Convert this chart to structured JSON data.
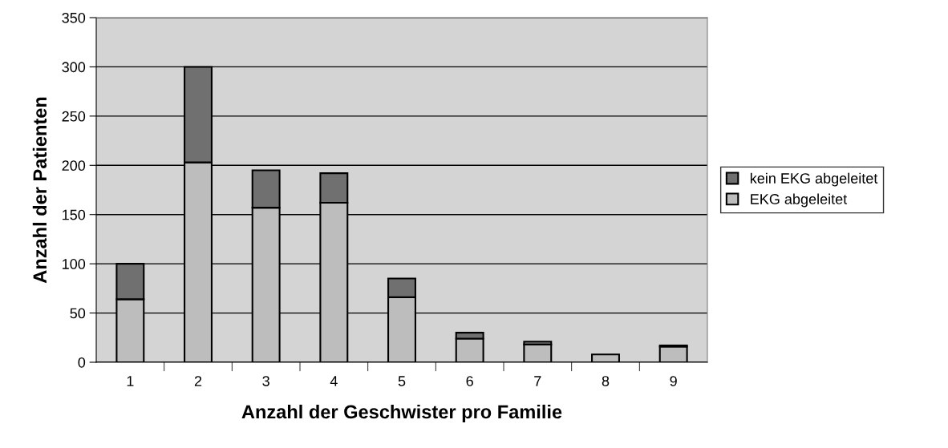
{
  "chart_data": {
    "type": "bar",
    "stacked": true,
    "xlabel": "Anzahl der Geschwister pro Familie",
    "ylabel": "Anzahl der Patienten",
    "categories": [
      "1",
      "2",
      "3",
      "4",
      "5",
      "6",
      "7",
      "8",
      "9"
    ],
    "series": [
      {
        "name": "EKG abgeleitet",
        "color": "#bdbdbd",
        "values": [
          64,
          203,
          157,
          162,
          66,
          24,
          18,
          8,
          16
        ]
      },
      {
        "name": "kein EKG abgeleitet",
        "color": "#707070",
        "values": [
          36,
          97,
          38,
          30,
          19,
          6,
          3,
          null,
          1
        ]
      }
    ],
    "ylim": [
      0,
      350
    ],
    "yticks": [
      0,
      50,
      100,
      150,
      200,
      250,
      300,
      350
    ],
    "grid": "y",
    "legend": "right"
  }
}
